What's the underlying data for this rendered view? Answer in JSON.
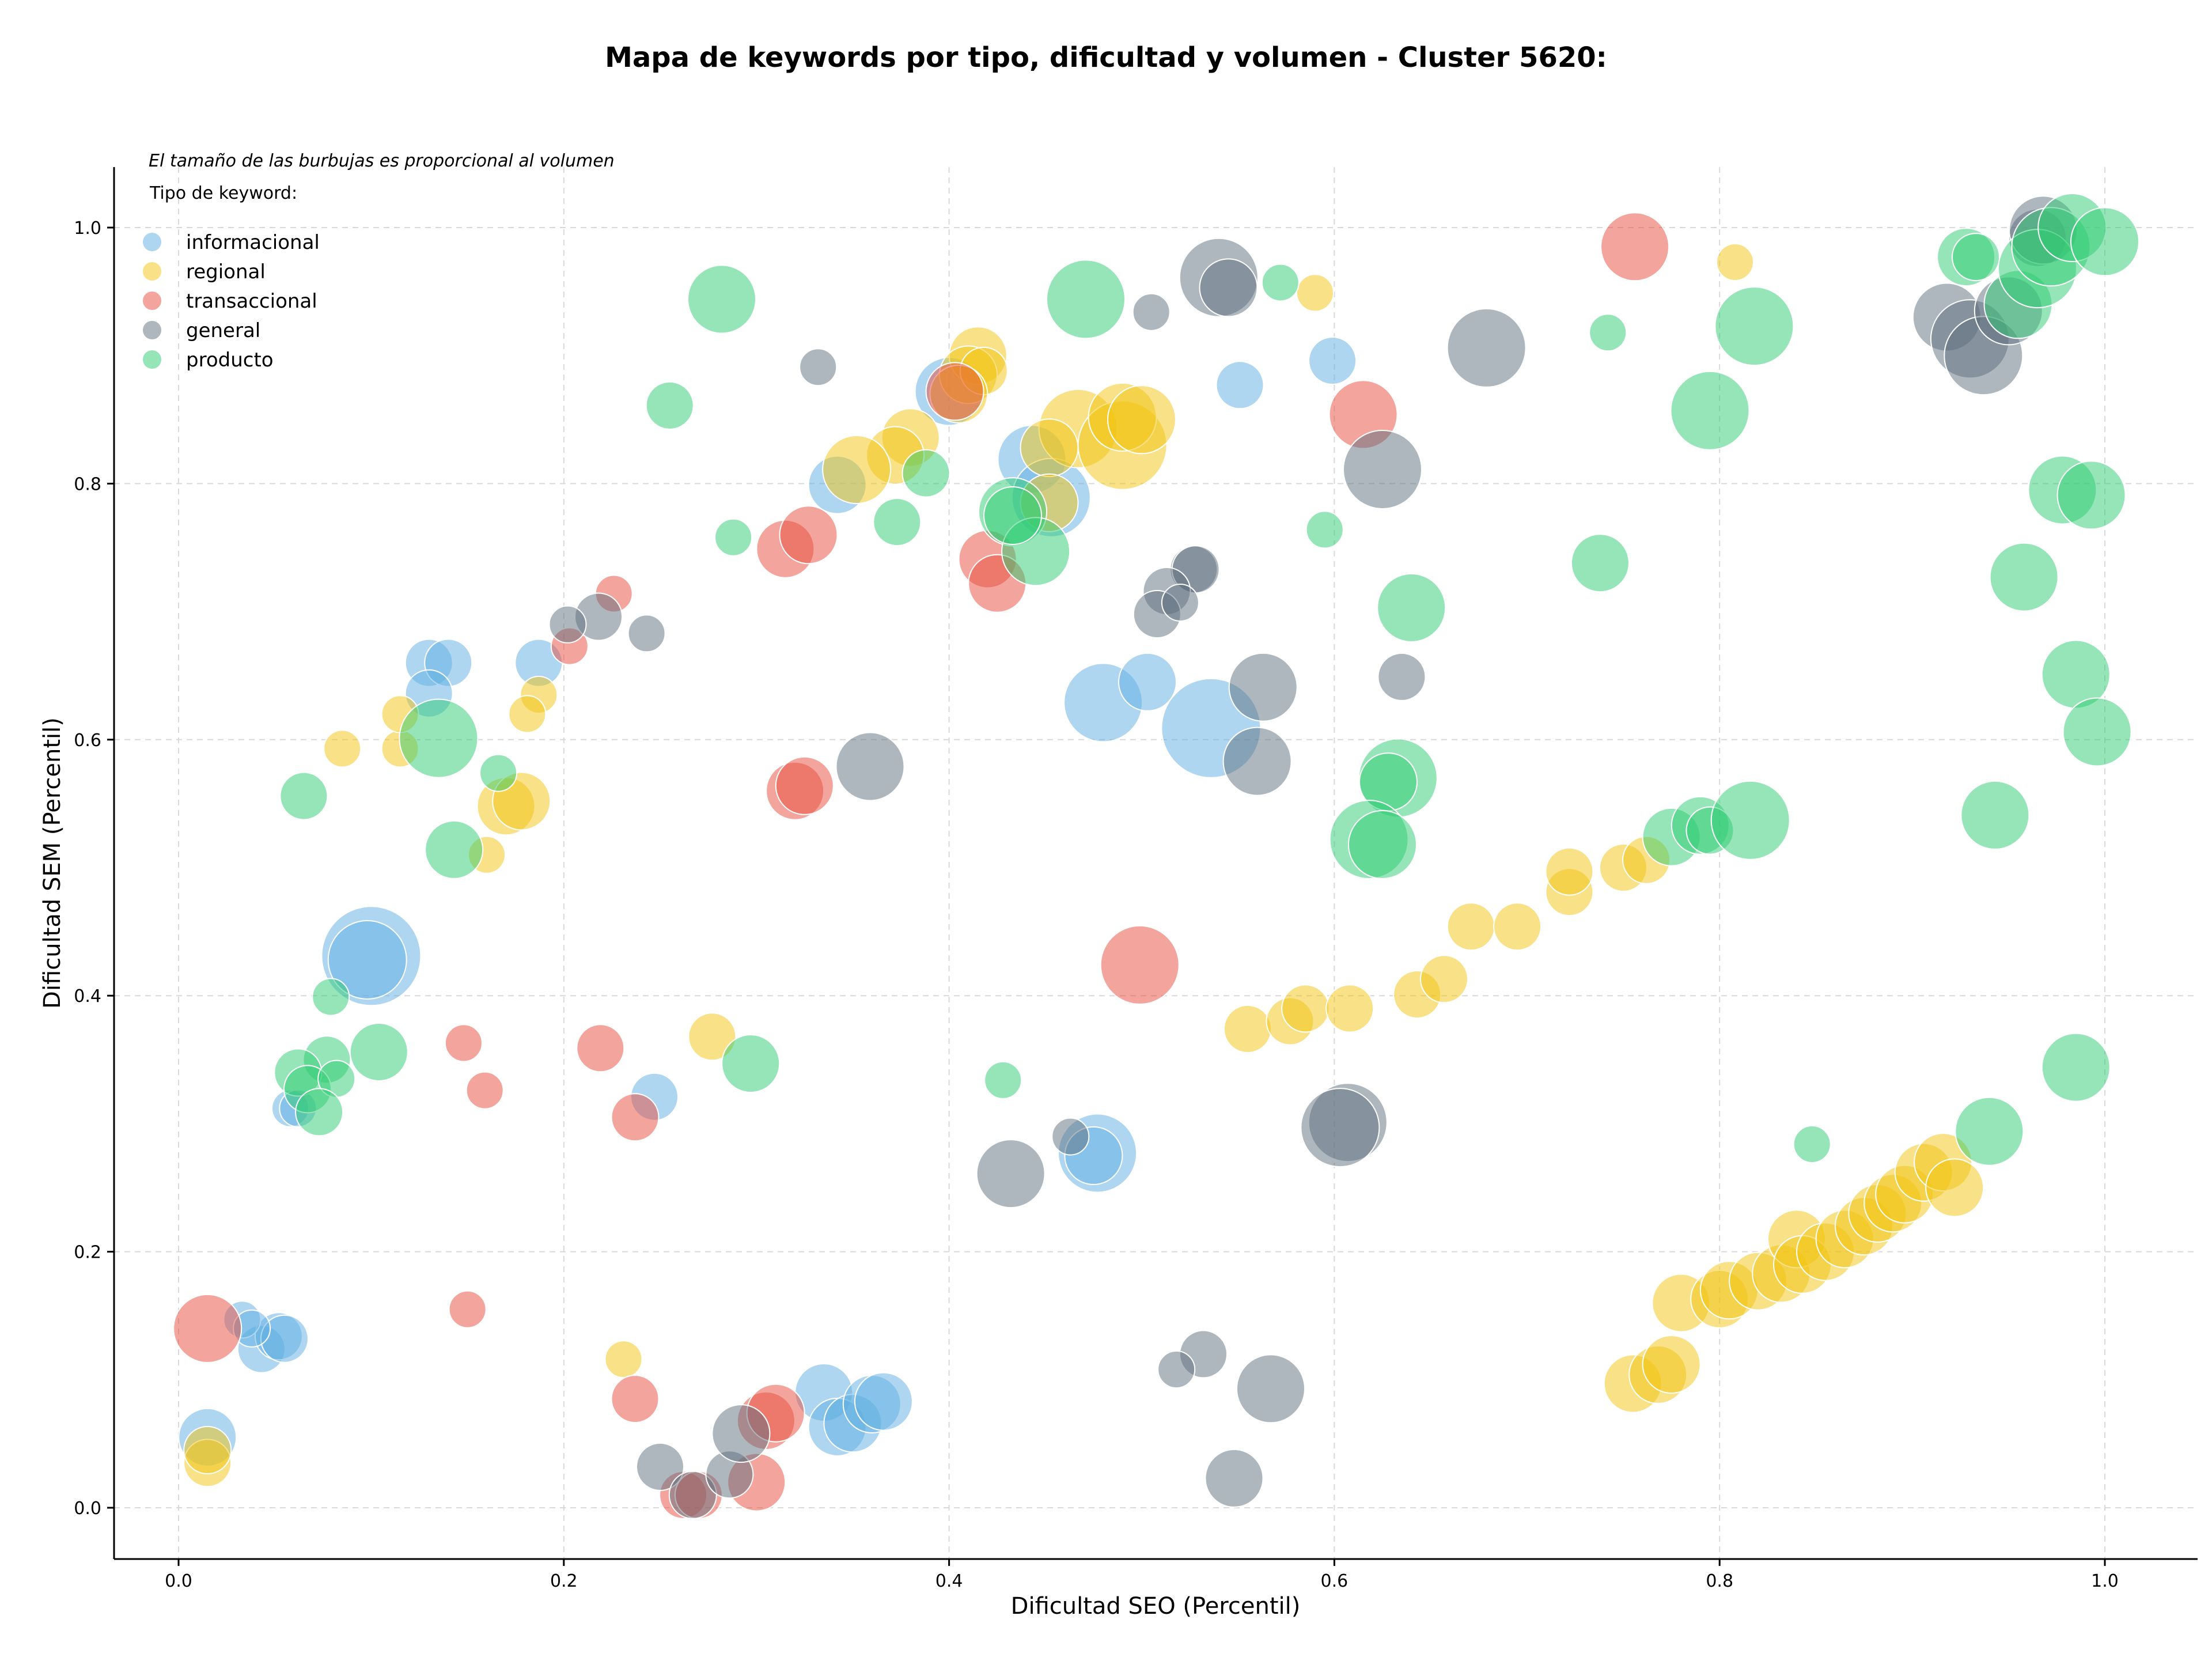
{
  "chart_data": {
    "type": "scatter",
    "title": "Mapa de keywords por tipo, dificultad y volumen - Cluster 5620:",
    "xlabel": "Dificultad SEO (Percentil)",
    "ylabel": "Dificultad SEM (Percentil)",
    "xlim": [
      -0.033,
      1.048
    ],
    "ylim": [
      -0.038,
      1.05
    ],
    "xticks": [
      0.0,
      0.2,
      0.4,
      0.6,
      0.8,
      1.0
    ],
    "yticks": [
      0.0,
      0.2,
      0.4,
      0.6,
      0.8,
      1.0
    ],
    "grid": true,
    "note": "El tamaño de las burbujas es proporcional al volumen",
    "legend": {
      "title": "Tipo de keyword:",
      "position": "top-left"
    },
    "series": [
      {
        "name": "informacional",
        "color": "#5dade2",
        "points": [
          [
            0.342,
            0.799,
            4
          ],
          [
            0.443,
            0.819,
            5
          ],
          [
            0.453,
            0.789,
            6
          ],
          [
            0.4,
            0.872,
            5
          ],
          [
            0.13,
            0.66,
            3
          ],
          [
            0.14,
            0.66,
            3
          ],
          [
            0.13,
            0.636,
            3
          ],
          [
            0.187,
            0.66,
            3
          ],
          [
            0.1,
            0.431,
            8
          ],
          [
            0.098,
            0.428,
            6
          ],
          [
            0.48,
            0.629,
            6
          ],
          [
            0.503,
            0.645,
            4
          ],
          [
            0.536,
            0.609,
            8
          ],
          [
            0.551,
            0.877,
            3
          ],
          [
            0.599,
            0.896,
            3
          ],
          [
            0.247,
            0.321,
            3
          ],
          [
            0.477,
            0.277,
            6
          ],
          [
            0.475,
            0.275,
            4
          ],
          [
            0.058,
            0.312,
            2
          ],
          [
            0.062,
            0.312,
            2
          ],
          [
            0.043,
            0.124,
            3
          ],
          [
            0.052,
            0.134,
            3
          ],
          [
            0.055,
            0.132,
            3
          ],
          [
            0.033,
            0.147,
            2
          ],
          [
            0.038,
            0.14,
            2
          ],
          [
            0.015,
            0.055,
            4
          ],
          [
            0.335,
            0.09,
            4
          ],
          [
            0.342,
            0.063,
            4
          ],
          [
            0.35,
            0.066,
            4
          ],
          [
            0.36,
            0.081,
            4
          ],
          [
            0.366,
            0.083,
            4
          ]
        ]
      },
      {
        "name": "regional",
        "color": "#f1c40f",
        "points": [
          [
            0.415,
            0.9,
            4
          ],
          [
            0.41,
            0.885,
            4
          ],
          [
            0.418,
            0.888,
            3
          ],
          [
            0.405,
            0.87,
            4
          ],
          [
            0.38,
            0.836,
            4
          ],
          [
            0.372,
            0.822,
            4
          ],
          [
            0.352,
            0.811,
            5
          ],
          [
            0.467,
            0.843,
            6
          ],
          [
            0.49,
            0.83,
            7
          ],
          [
            0.49,
            0.852,
            5
          ],
          [
            0.5,
            0.85,
            5
          ],
          [
            0.452,
            0.828,
            4
          ],
          [
            0.452,
            0.785,
            4
          ],
          [
            0.085,
            0.593,
            2
          ],
          [
            0.115,
            0.593,
            2
          ],
          [
            0.115,
            0.62,
            2
          ],
          [
            0.187,
            0.635,
            2
          ],
          [
            0.181,
            0.62,
            2
          ],
          [
            0.17,
            0.548,
            4
          ],
          [
            0.178,
            0.552,
            4
          ],
          [
            0.16,
            0.51,
            2
          ],
          [
            0.277,
            0.368,
            3
          ],
          [
            0.231,
            0.116,
            2
          ],
          [
            0.015,
            0.035,
            3
          ],
          [
            0.015,
            0.045,
            3
          ],
          [
            0.59,
            0.949,
            2
          ],
          [
            0.808,
            0.973,
            2
          ],
          [
            0.555,
            0.374,
            3
          ],
          [
            0.577,
            0.38,
            3
          ],
          [
            0.585,
            0.39,
            3
          ],
          [
            0.608,
            0.39,
            3
          ],
          [
            0.643,
            0.401,
            3
          ],
          [
            0.657,
            0.413,
            3
          ],
          [
            0.671,
            0.454,
            3
          ],
          [
            0.695,
            0.454,
            3
          ],
          [
            0.722,
            0.481,
            3
          ],
          [
            0.722,
            0.497,
            3
          ],
          [
            0.75,
            0.5,
            3
          ],
          [
            0.762,
            0.506,
            3
          ],
          [
            0.755,
            0.097,
            4
          ],
          [
            0.768,
            0.104,
            4
          ],
          [
            0.775,
            0.112,
            4
          ],
          [
            0.78,
            0.16,
            4
          ],
          [
            0.8,
            0.163,
            4
          ],
          [
            0.805,
            0.17,
            4
          ],
          [
            0.82,
            0.177,
            4
          ],
          [
            0.832,
            0.183,
            4
          ],
          [
            0.84,
            0.21,
            4
          ],
          [
            0.843,
            0.19,
            4
          ],
          [
            0.855,
            0.2,
            4
          ],
          [
            0.865,
            0.21,
            4
          ],
          [
            0.875,
            0.22,
            4
          ],
          [
            0.882,
            0.23,
            4
          ],
          [
            0.89,
            0.238,
            4
          ],
          [
            0.896,
            0.245,
            4
          ],
          [
            0.906,
            0.262,
            4
          ],
          [
            0.916,
            0.27,
            4
          ],
          [
            0.922,
            0.25,
            4
          ]
        ]
      },
      {
        "name": "transaccional",
        "color": "#e74c3c",
        "points": [
          [
            0.756,
            0.985,
            5
          ],
          [
            0.615,
            0.854,
            5
          ],
          [
            0.403,
            0.872,
            4
          ],
          [
            0.42,
            0.741,
            4
          ],
          [
            0.425,
            0.722,
            4
          ],
          [
            0.315,
            0.749,
            4
          ],
          [
            0.327,
            0.76,
            4
          ],
          [
            0.226,
            0.714,
            2
          ],
          [
            0.203,
            0.673,
            2
          ],
          [
            0.32,
            0.56,
            4
          ],
          [
            0.325,
            0.564,
            4
          ],
          [
            0.499,
            0.424,
            6
          ],
          [
            0.219,
            0.359,
            3
          ],
          [
            0.148,
            0.363,
            2
          ],
          [
            0.159,
            0.326,
            2
          ],
          [
            0.237,
            0.305,
            3
          ],
          [
            0.15,
            0.155,
            2
          ],
          [
            0.015,
            0.14,
            5
          ],
          [
            0.237,
            0.085,
            3
          ],
          [
            0.3,
            0.02,
            4
          ],
          [
            0.305,
            0.068,
            4
          ],
          [
            0.31,
            0.074,
            4
          ],
          [
            0.262,
            0.01,
            3
          ],
          [
            0.27,
            0.01,
            3
          ]
        ]
      },
      {
        "name": "general",
        "color": "#5d6d7e",
        "points": [
          [
            0.54,
            0.961,
            6
          ],
          [
            0.545,
            0.953,
            4
          ],
          [
            0.505,
            0.934,
            2
          ],
          [
            0.332,
            0.891,
            2
          ],
          [
            0.679,
            0.906,
            6
          ],
          [
            0.625,
            0.811,
            6
          ],
          [
            0.527,
            0.733,
            3
          ],
          [
            0.528,
            0.733,
            3
          ],
          [
            0.513,
            0.716,
            3
          ],
          [
            0.508,
            0.698,
            3
          ],
          [
            0.52,
            0.707,
            2
          ],
          [
            0.218,
            0.696,
            3
          ],
          [
            0.202,
            0.69,
            2
          ],
          [
            0.243,
            0.683,
            2
          ],
          [
            0.563,
            0.641,
            5
          ],
          [
            0.56,
            0.583,
            5
          ],
          [
            0.359,
            0.579,
            5
          ],
          [
            0.635,
            0.649,
            3
          ],
          [
            0.607,
            0.301,
            6
          ],
          [
            0.603,
            0.297,
            6
          ],
          [
            0.432,
            0.261,
            5
          ],
          [
            0.463,
            0.29,
            2
          ],
          [
            0.532,
            0.12,
            3
          ],
          [
            0.518,
            0.108,
            2
          ],
          [
            0.567,
            0.093,
            5
          ],
          [
            0.548,
            0.023,
            4
          ],
          [
            0.25,
            0.032,
            3
          ],
          [
            0.267,
            0.01,
            3
          ],
          [
            0.286,
            0.026,
            3
          ],
          [
            0.292,
            0.058,
            4
          ],
          [
            0.918,
            0.93,
            5
          ],
          [
            0.93,
            0.913,
            6
          ],
          [
            0.937,
            0.9,
            6
          ],
          [
            0.95,
            0.935,
            5
          ],
          [
            0.965,
            0.992,
            4
          ],
          [
            0.968,
            0.998,
            5
          ]
        ]
      },
      {
        "name": "producto",
        "color": "#2ecc71",
        "points": [
          [
            0.282,
            0.944,
            5
          ],
          [
            0.471,
            0.944,
            6
          ],
          [
            0.572,
            0.957,
            2
          ],
          [
            0.255,
            0.861,
            3
          ],
          [
            0.388,
            0.808,
            3
          ],
          [
            0.373,
            0.77,
            3
          ],
          [
            0.433,
            0.778,
            5
          ],
          [
            0.445,
            0.747,
            5
          ],
          [
            0.433,
            0.775,
            4
          ],
          [
            0.288,
            0.758,
            2
          ],
          [
            0.595,
            0.764,
            2
          ],
          [
            0.64,
            0.703,
            5
          ],
          [
            0.738,
            0.738,
            4
          ],
          [
            0.135,
            0.601,
            6
          ],
          [
            0.166,
            0.574,
            2
          ],
          [
            0.065,
            0.556,
            3
          ],
          [
            0.143,
            0.514,
            4
          ],
          [
            0.633,
            0.57,
            6
          ],
          [
            0.628,
            0.567,
            4
          ],
          [
            0.618,
            0.522,
            6
          ],
          [
            0.625,
            0.518,
            5
          ],
          [
            0.775,
            0.524,
            4
          ],
          [
            0.79,
            0.533,
            4
          ],
          [
            0.795,
            0.529,
            3
          ],
          [
            0.816,
            0.537,
            6
          ],
          [
            0.943,
            0.541,
            5
          ],
          [
            0.985,
            0.651,
            5
          ],
          [
            0.996,
            0.606,
            5
          ],
          [
            0.978,
            0.795,
            5
          ],
          [
            0.993,
            0.791,
            5
          ],
          [
            0.958,
            0.727,
            5
          ],
          [
            0.795,
            0.857,
            6
          ],
          [
            0.818,
            0.923,
            6
          ],
          [
            0.928,
            0.977,
            4
          ],
          [
            0.933,
            0.977,
            3
          ],
          [
            0.742,
            0.918,
            2
          ],
          [
            0.955,
            0.94,
            5
          ],
          [
            0.965,
            0.968,
            6
          ],
          [
            0.972,
            0.985,
            6
          ],
          [
            0.983,
            1.0,
            5
          ],
          [
            1.0,
            0.989,
            5
          ],
          [
            0.079,
            0.399,
            2
          ],
          [
            0.104,
            0.356,
            4
          ],
          [
            0.077,
            0.35,
            3
          ],
          [
            0.062,
            0.34,
            3
          ],
          [
            0.067,
            0.327,
            3
          ],
          [
            0.082,
            0.335,
            2
          ],
          [
            0.073,
            0.309,
            3
          ],
          [
            0.297,
            0.347,
            4
          ],
          [
            0.428,
            0.334,
            2
          ],
          [
            0.848,
            0.284,
            2
          ],
          [
            0.94,
            0.294,
            5
          ],
          [
            0.985,
            0.344,
            5
          ]
        ]
      }
    ]
  }
}
